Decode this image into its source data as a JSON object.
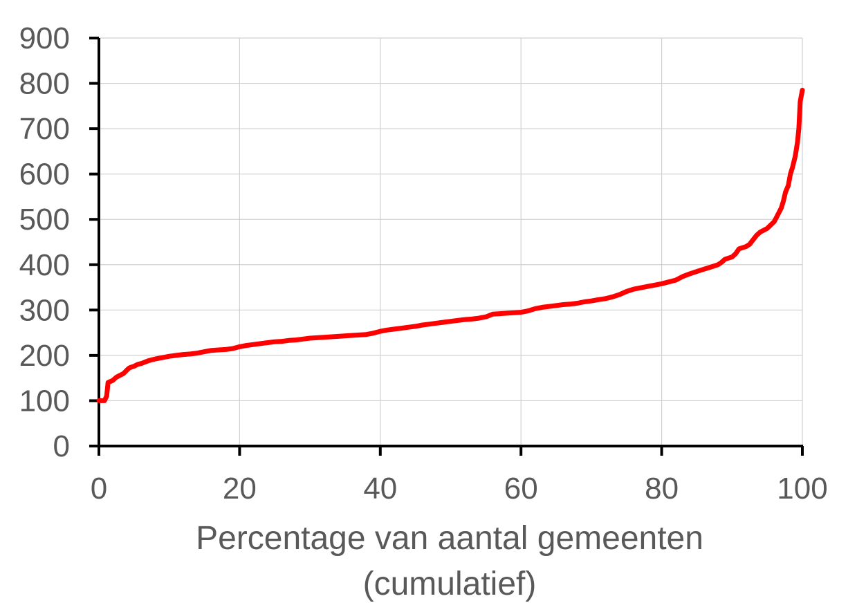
{
  "chart_data": {
    "type": "line",
    "title": "",
    "xlabel_lines": [
      "Percentage van aantal gemeenten",
      "(cumulatief)"
    ],
    "ylabel": "",
    "xlim": [
      0,
      100
    ],
    "ylim": [
      0,
      900
    ],
    "x_ticks": [
      0,
      20,
      40,
      60,
      80,
      100
    ],
    "y_ticks": [
      0,
      100,
      200,
      300,
      400,
      500,
      600,
      700,
      800,
      900
    ],
    "x_tick_labels": [
      "0",
      "20",
      "40",
      "60",
      "80",
      "100"
    ],
    "y_tick_labels": [
      "0",
      "100",
      "200",
      "300",
      "400",
      "500",
      "600",
      "700",
      "800",
      "900"
    ],
    "grid": true,
    "legend": "none",
    "colors": {
      "line": "#ff0000",
      "grid": "#d0d0d0",
      "axis": "#000000",
      "text": "#595959"
    },
    "series": [
      {
        "x": [
          0,
          0.5,
          0.8,
          1.1,
          1.3,
          2,
          2.5,
          3.5,
          4,
          4.3,
          4.6,
          5,
          5.5,
          6,
          6.5,
          7,
          7.5,
          8,
          9,
          10,
          11,
          12,
          13,
          14,
          15,
          16,
          17,
          18,
          19,
          20,
          21,
          22,
          23,
          24,
          25,
          26,
          27,
          28,
          29,
          30,
          32,
          34,
          36,
          38,
          39,
          40,
          41,
          42,
          43,
          44,
          45,
          46,
          47,
          48,
          49,
          50,
          51,
          52,
          53,
          54,
          55,
          56,
          57,
          58,
          59,
          60,
          61,
          62,
          63,
          64,
          65,
          66,
          67,
          68,
          69,
          70,
          71,
          72,
          73,
          74,
          75,
          76,
          77,
          78,
          79,
          80,
          81,
          82,
          83,
          84,
          85,
          86,
          87,
          88,
          88.5,
          89,
          90,
          90.5,
          91,
          92,
          92.5,
          93,
          93.5,
          94,
          95,
          96,
          96.5,
          97,
          97.3,
          97.6,
          98,
          98.3,
          98.6,
          99,
          99.3,
          99.5,
          99.7,
          100
        ],
        "y": [
          100,
          100,
          100,
          110,
          140,
          145,
          152,
          160,
          168,
          172,
          174,
          176,
          180,
          182,
          185,
          188,
          190,
          192,
          195,
          198,
          200,
          202,
          203,
          205,
          208,
          211,
          212,
          213,
          215,
          219,
          222,
          224,
          226,
          228,
          230,
          231,
          233,
          234,
          236,
          238,
          240,
          242,
          244,
          246,
          249,
          253,
          256,
          258,
          260,
          262,
          264,
          267,
          269,
          271,
          273,
          275,
          277,
          279,
          280,
          282,
          285,
          291,
          292,
          293,
          294,
          295,
          298,
          303,
          306,
          308,
          310,
          312,
          313,
          315,
          318,
          320,
          323,
          325,
          329,
          334,
          341,
          346,
          349,
          352,
          355,
          358,
          362,
          366,
          374,
          380,
          385,
          390,
          395,
          400,
          405,
          412,
          417,
          424,
          435,
          440,
          445,
          455,
          465,
          472,
          480,
          495,
          510,
          525,
          540,
          560,
          575,
          600,
          615,
          640,
          670,
          700,
          760,
          785
        ]
      }
    ]
  }
}
